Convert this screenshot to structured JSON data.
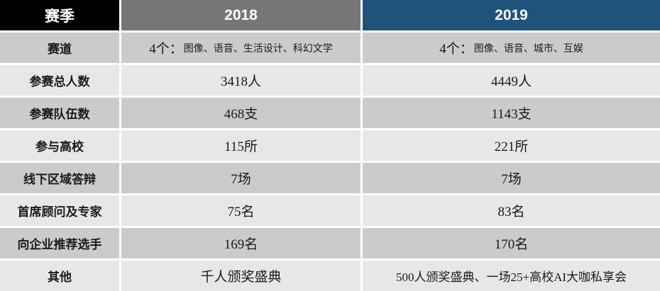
{
  "colors": {
    "header_season_bg": "#000000",
    "header_2018_bg": "#767676",
    "header_2019_bg": "#1f537c",
    "row_dark_bg": "#cbcbcb",
    "row_light_bg": "#e7e7e7",
    "header_text": "#ffffff",
    "body_text": "#1a1a1a",
    "separator": "#ffffff"
  },
  "chart_data": {
    "type": "table",
    "columns": [
      "赛季",
      "2018",
      "2019"
    ],
    "rows": [
      [
        "赛道",
        "4个：图像、语音、生活设计、科幻文学",
        "4个：图像、语音、城市、互娱"
      ],
      [
        "参赛总人数",
        "3418人",
        "4449人"
      ],
      [
        "参赛队伍数",
        "468支",
        "1143支"
      ],
      [
        "参与高校",
        "115所",
        "221所"
      ],
      [
        "线下区域答辩",
        "7场",
        "7场"
      ],
      [
        "首席顾问及专家",
        "75名",
        "83名"
      ],
      [
        "向企业推荐选手",
        "169名",
        "170名"
      ],
      [
        "其他",
        "千人颁奖盛典",
        "500人颁奖盛典、一场25+高校AI大咖私享会"
      ]
    ]
  },
  "display": {
    "track_2018": {
      "lead": "4个：",
      "items": "图像、语音、生活设计、科幻文学"
    },
    "track_2019": {
      "lead": "4个：",
      "items": "图像、语音、城市、互娱"
    }
  }
}
